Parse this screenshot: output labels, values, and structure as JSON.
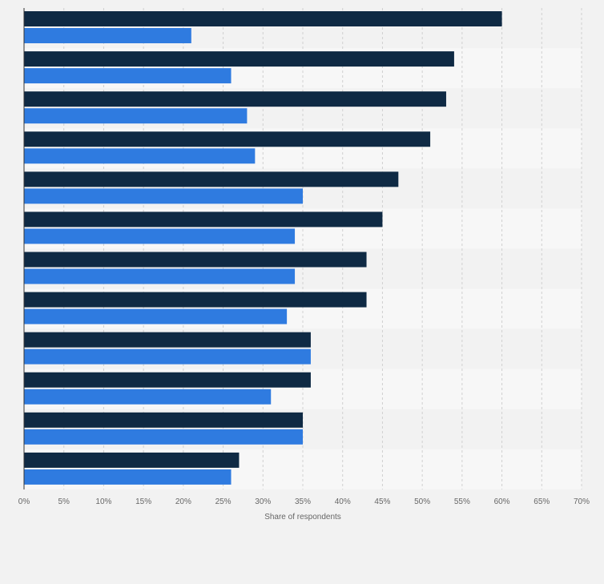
{
  "colors": {
    "page_background": "#f2f2f2",
    "plot_band_light": "#f7f7f7",
    "plot_band_dark": "#f2f2f2",
    "grid": "#d0d0d0",
    "axis": "#333333"
  },
  "chart_data": {
    "type": "bar",
    "orientation": "horizontal",
    "title": "",
    "xlabel": "Share of respondents",
    "ylabel": "",
    "xlim": [
      0,
      70
    ],
    "x_ticks": [
      "0%",
      "5%",
      "10%",
      "15%",
      "20%",
      "25%",
      "30%",
      "35%",
      "40%",
      "45%",
      "50%",
      "55%",
      "60%",
      "65%",
      "70%"
    ],
    "grid": true,
    "legend": "none",
    "categories": [
      "",
      "",
      "",
      "",
      "",
      "",
      "",
      "",
      "",
      "",
      "",
      ""
    ],
    "series": [
      {
        "color": "#0f2a44",
        "values": [
          60,
          54,
          53,
          51,
          47,
          45,
          43,
          43,
          36,
          36,
          35,
          27
        ]
      },
      {
        "color": "#2f7be0",
        "values": [
          21,
          26,
          28,
          29,
          35,
          34,
          34,
          33,
          36,
          31,
          35,
          26
        ]
      }
    ]
  }
}
